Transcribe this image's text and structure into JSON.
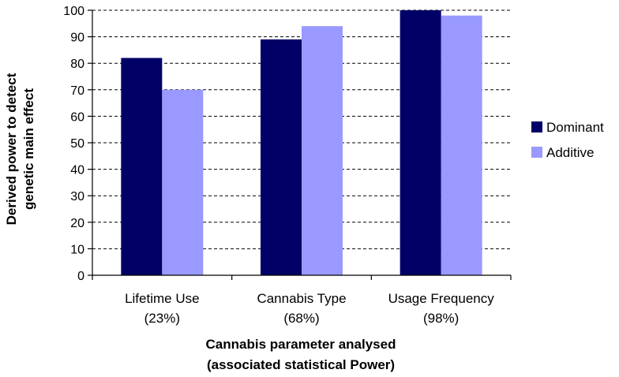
{
  "chart_data": {
    "type": "bar",
    "categories": [
      [
        "Lifetime Use",
        "(23%)"
      ],
      [
        "Cannabis Type",
        "(68%)"
      ],
      [
        "Usage Frequency",
        "(98%)"
      ]
    ],
    "series": [
      {
        "name": "Dominant",
        "values": [
          82,
          89,
          100
        ],
        "color": "#000066"
      },
      {
        "name": "Additive",
        "values": [
          70,
          94,
          98
        ],
        "color": "#9999ff"
      }
    ],
    "xlabel": [
      "Cannabis parameter analysed",
      "(associated statistical Power)"
    ],
    "ylabel": [
      "Derived power to detect",
      "genetic main effect"
    ],
    "ylim": [
      0,
      100
    ],
    "yticks": [
      0,
      10,
      20,
      30,
      40,
      50,
      60,
      70,
      80,
      90,
      100
    ],
    "grid": "horizontal dashed",
    "legend": "right"
  }
}
